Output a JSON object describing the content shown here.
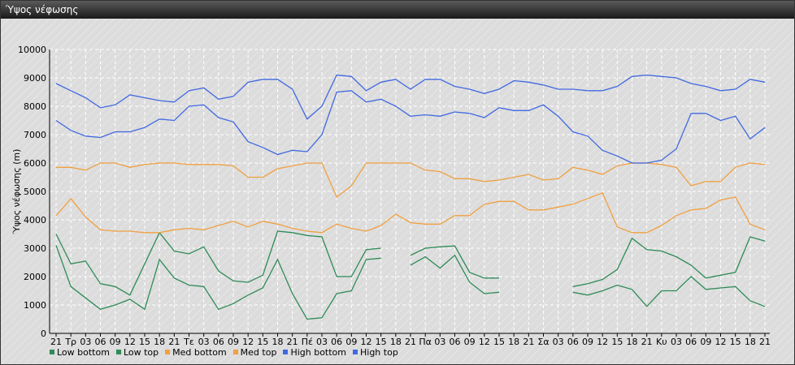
{
  "window": {
    "title": "Ύψος νέφωσης"
  },
  "chart_data": {
    "type": "line",
    "ylabel": "Ύψος νέφωσης (m)",
    "ylim": [
      0,
      10000
    ],
    "yticks": [
      0,
      1000,
      2000,
      3000,
      4000,
      5000,
      6000,
      7000,
      8000,
      9000,
      10000
    ],
    "grid": true,
    "legend_position": "bottom-left",
    "categories": [
      "21",
      "Τρ",
      "03",
      "06",
      "09",
      "12",
      "15",
      "18",
      "21",
      "Τε",
      "03",
      "06",
      "09",
      "12",
      "15",
      "18",
      "21",
      "Πέ",
      "03",
      "06",
      "09",
      "12",
      "15",
      "18",
      "21",
      "Πα",
      "03",
      "06",
      "09",
      "12",
      "15",
      "18",
      "21",
      "Σα",
      "03",
      "06",
      "09",
      "12",
      "15",
      "18",
      "21",
      "Κυ",
      "03",
      "06",
      "09",
      "12",
      "15",
      "18",
      "21"
    ],
    "series": [
      {
        "name": "Low bottom",
        "color": "#2e8b57",
        "values": [
          3100,
          1650,
          1250,
          850,
          1000,
          1200,
          850,
          2600,
          1950,
          1700,
          1650,
          850,
          1050,
          1350,
          1600,
          2600,
          1400,
          500,
          550,
          1400,
          1500,
          2600,
          2650,
          null,
          2400,
          2700,
          2300,
          2750,
          1800,
          1400,
          1450,
          null,
          null,
          null,
          null,
          1450,
          1350,
          1500,
          1700,
          1550,
          950,
          1500,
          1500,
          2000,
          1550,
          1600,
          1650,
          1150,
          950
        ]
      },
      {
        "name": "Low top",
        "color": "#2e8b57",
        "values": [
          3500,
          2450,
          2550,
          1750,
          1650,
          1350,
          2450,
          3550,
          2900,
          2800,
          3050,
          2200,
          1850,
          1800,
          2050,
          3600,
          3550,
          3450,
          3400,
          2000,
          2000,
          2950,
          3000,
          null,
          2750,
          3000,
          3050,
          3080,
          2150,
          1950,
          1950,
          null,
          null,
          null,
          null,
          1650,
          1750,
          1900,
          2250,
          3350,
          2950,
          2900,
          2700,
          2400,
          1950,
          2050,
          2150,
          3400,
          3250
        ]
      },
      {
        "name": "Med bottom",
        "color": "#f0a040",
        "values": [
          4150,
          4750,
          4100,
          3650,
          3600,
          3600,
          3550,
          3550,
          3650,
          3700,
          3650,
          3800,
          3950,
          3750,
          3950,
          3850,
          3700,
          3600,
          3550,
          3850,
          3700,
          3600,
          3800,
          4200,
          3900,
          3850,
          3850,
          4150,
          4150,
          4550,
          4650,
          4650,
          4350,
          4350,
          4450,
          4550,
          4750,
          4950,
          3750,
          3550,
          3550,
          3800,
          4150,
          4350,
          4400,
          4700,
          4800,
          3850,
          3650
        ]
      },
      {
        "name": "Med top",
        "color": "#f0a040",
        "values": [
          5850,
          5850,
          5750,
          6000,
          6000,
          5850,
          5950,
          6000,
          6000,
          5950,
          5950,
          5950,
          5900,
          5500,
          5500,
          5800,
          5900,
          6000,
          6000,
          4800,
          5200,
          6000,
          6000,
          6000,
          6000,
          5750,
          5700,
          5450,
          5450,
          5350,
          5400,
          5500,
          5600,
          5400,
          5450,
          5850,
          5750,
          5600,
          5900,
          6000,
          6000,
          5950,
          5850,
          5200,
          5350,
          5350,
          5850,
          6000,
          5950
        ]
      },
      {
        "name": "High bottom",
        "color": "#4169e1",
        "values": [
          7500,
          7150,
          6950,
          6900,
          7100,
          7100,
          7250,
          7550,
          7500,
          8000,
          8050,
          7600,
          7450,
          6750,
          6550,
          6300,
          6450,
          6400,
          7000,
          8500,
          8550,
          8150,
          8250,
          8000,
          7650,
          7700,
          7650,
          7800,
          7750,
          7600,
          7950,
          7850,
          7850,
          8050,
          7650,
          7100,
          6950,
          6450,
          6250,
          6000,
          6000,
          6100,
          6500,
          7750,
          7750,
          7500,
          7650,
          6850,
          7250
        ]
      },
      {
        "name": "High top",
        "color": "#4169e1",
        "values": [
          8800,
          8550,
          8300,
          7950,
          8050,
          8400,
          8300,
          8200,
          8150,
          8550,
          8650,
          8250,
          8350,
          8850,
          8950,
          8950,
          8600,
          7550,
          8000,
          9100,
          9050,
          8550,
          8850,
          8950,
          8600,
          8950,
          8950,
          8700,
          8600,
          8450,
          8600,
          8900,
          8850,
          8750,
          8600,
          8600,
          8550,
          8550,
          8700,
          9050,
          9100,
          9050,
          9000,
          8800,
          8700,
          8550,
          8600,
          8950,
          8850
        ]
      }
    ]
  }
}
